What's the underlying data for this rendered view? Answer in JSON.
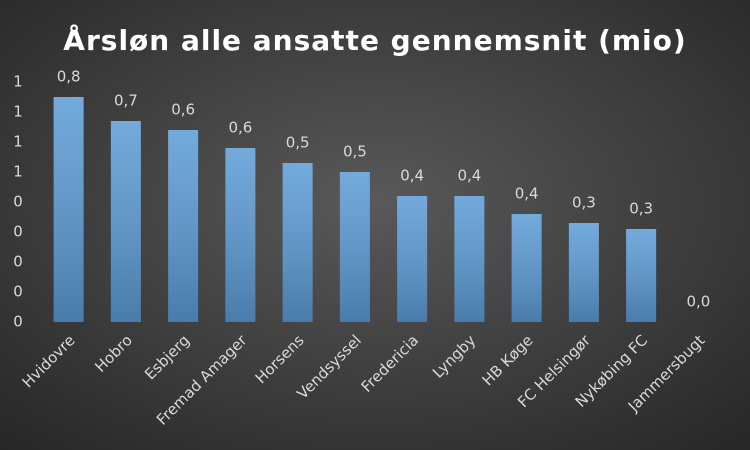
{
  "chart_data": {
    "type": "bar",
    "title": "Årsløn alle ansatte gennemsnit (mio)",
    "categories": [
      "Hvidovre",
      "Hobro",
      "Esbjerg",
      "Fremad Amager",
      "Horsens",
      "Vendsyssel",
      "Fredericia",
      "Lyngby",
      "HB Køge",
      "FC Helsingør",
      "Nykøbing FC",
      "Jammersbugt"
    ],
    "values": [
      0.75,
      0.67,
      0.64,
      0.58,
      0.53,
      0.5,
      0.42,
      0.42,
      0.36,
      0.33,
      0.31,
      0
    ],
    "value_labels": [
      "0,8",
      "0,7",
      "0,6",
      "0,6",
      "0,5",
      "0,5",
      "0,4",
      "0,4",
      "0,4",
      "0,3",
      "0,3",
      "0,0"
    ],
    "color": "#5b9bd5",
    "ylim": [
      0,
      0.8
    ],
    "yticks": [
      0,
      {
        "value": 0.1,
        "label": "0"
      },
      {
        "value": 0.2,
        "label": "0"
      },
      {
        "value": 0.3,
        "label": "0"
      },
      {
        "value": 0.4,
        "label": "0"
      },
      {
        "value": 0.5,
        "label": "1"
      },
      {
        "value": 0.6,
        "label": "1"
      },
      {
        "value": 0.7,
        "label": "1"
      },
      {
        "value": 0.8,
        "label": "1"
      }
    ],
    "grid": false
  }
}
